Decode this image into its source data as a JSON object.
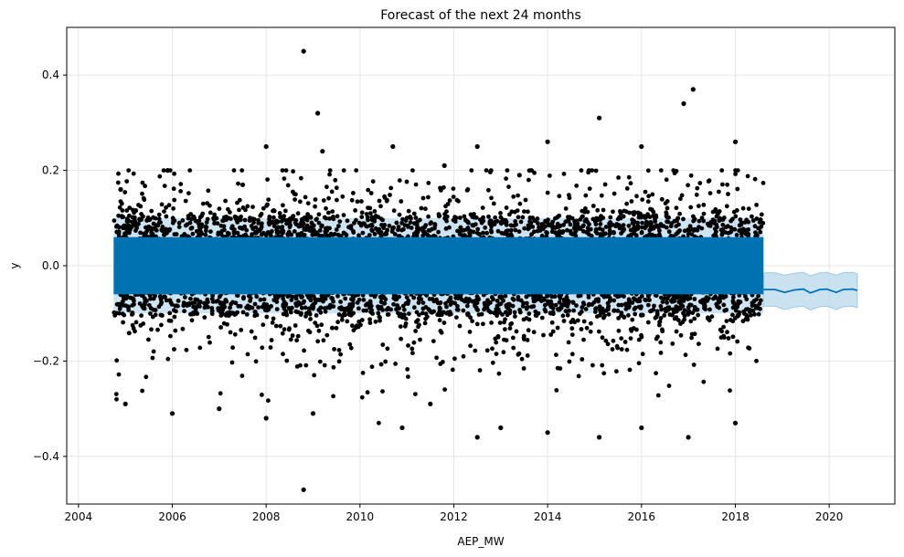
{
  "chart_data": {
    "type": "scatter",
    "title": "Forecast of the next 24 months",
    "xlabel": "AEP_MW",
    "ylabel": "y",
    "xlim": [
      2003.75,
      2021.4
    ],
    "ylim": [
      -0.5,
      0.5
    ],
    "grid": true,
    "x_ticks": [
      2004,
      2006,
      2008,
      2010,
      2012,
      2014,
      2016,
      2018,
      2020
    ],
    "x_tick_labels": [
      "2004",
      "2006",
      "2008",
      "2010",
      "2012",
      "2014",
      "2016",
      "2018",
      "2020"
    ],
    "y_ticks": [
      -0.4,
      -0.2,
      0.0,
      0.2,
      0.4
    ],
    "y_tick_labels": [
      "−0.4",
      "−0.2",
      "0.0",
      "0.2",
      "0.4"
    ],
    "colors": {
      "observed": "#000000",
      "forecast_line": "#0072B2",
      "uncertainty_band": "#9ecae1",
      "grid": "#e6e6e6"
    },
    "series": [
      {
        "type": "scatter",
        "x_range": [
          2004.75,
          2018.6
        ],
        "dense_band": [
          -0.06,
          0.06
        ],
        "outlier_points": [
          {
            "x": 2008.8,
            "y": 0.45
          },
          {
            "x": 2017.1,
            "y": 0.37
          },
          {
            "x": 2016.9,
            "y": 0.34
          },
          {
            "x": 2009.1,
            "y": 0.32
          },
          {
            "x": 2015.1,
            "y": 0.31
          },
          {
            "x": 2012.5,
            "y": 0.25
          },
          {
            "x": 2014.0,
            "y": 0.26
          },
          {
            "x": 2008.0,
            "y": 0.25
          },
          {
            "x": 2010.7,
            "y": 0.25
          },
          {
            "x": 2009.2,
            "y": 0.24
          },
          {
            "x": 2016.0,
            "y": 0.25
          },
          {
            "x": 2018.0,
            "y": 0.26
          },
          {
            "x": 2005.9,
            "y": 0.2
          },
          {
            "x": 2013.4,
            "y": 0.19
          },
          {
            "x": 2004.9,
            "y": 0.16
          },
          {
            "x": 2007.5,
            "y": 0.17
          },
          {
            "x": 2011.8,
            "y": 0.21
          },
          {
            "x": 2008.8,
            "y": -0.47
          },
          {
            "x": 2012.5,
            "y": -0.36
          },
          {
            "x": 2015.1,
            "y": -0.36
          },
          {
            "x": 2017.0,
            "y": -0.36
          },
          {
            "x": 2018.0,
            "y": -0.33
          },
          {
            "x": 2016.0,
            "y": -0.34
          },
          {
            "x": 2014.0,
            "y": -0.35
          },
          {
            "x": 2008.0,
            "y": -0.32
          },
          {
            "x": 2010.9,
            "y": -0.34
          },
          {
            "x": 2005.0,
            "y": -0.29
          },
          {
            "x": 2009.0,
            "y": -0.31
          },
          {
            "x": 2013.0,
            "y": -0.34
          },
          {
            "x": 2007.0,
            "y": -0.3
          },
          {
            "x": 2006.0,
            "y": -0.31
          },
          {
            "x": 2011.5,
            "y": -0.29
          }
        ]
      },
      {
        "type": "line",
        "x": [
          2018.6,
          2018.85,
          2019.05,
          2019.25,
          2019.45,
          2019.6,
          2019.8,
          2019.95,
          2020.15,
          2020.3,
          2020.5,
          2020.6
        ],
        "y": [
          -0.05,
          -0.05,
          -0.056,
          -0.051,
          -0.049,
          -0.057,
          -0.05,
          -0.049,
          -0.056,
          -0.05,
          -0.049,
          -0.052
        ],
        "lower": [
          -0.085,
          -0.085,
          -0.092,
          -0.087,
          -0.085,
          -0.093,
          -0.086,
          -0.085,
          -0.092,
          -0.086,
          -0.085,
          -0.088
        ],
        "upper": [
          -0.015,
          -0.015,
          -0.02,
          -0.016,
          -0.014,
          -0.021,
          -0.015,
          -0.014,
          -0.02,
          -0.015,
          -0.014,
          -0.017
        ]
      }
    ]
  }
}
